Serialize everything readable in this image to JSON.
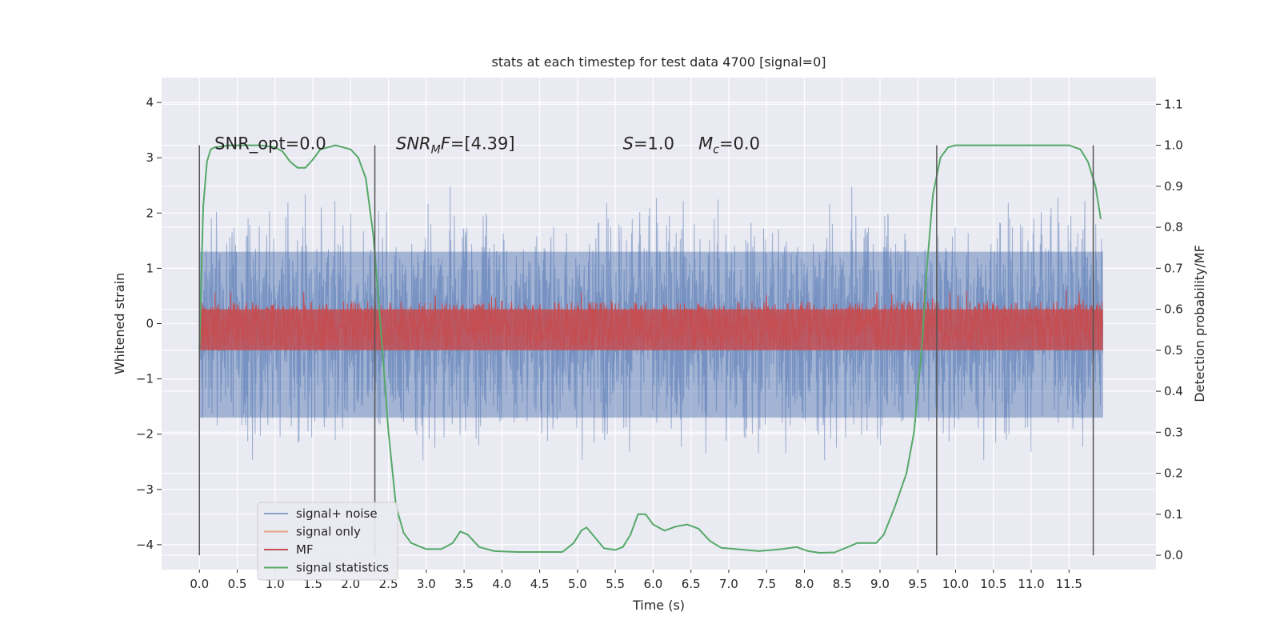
{
  "chart_data": {
    "type": "line",
    "title": "stats at each timestep for test data 4700 [signal=0]",
    "xlabel": "Time (s)",
    "ylabel": "Whitened strain",
    "y2label": "Detection probability/MF",
    "xlim": [
      -0.5,
      12.65
    ],
    "ylim": [
      -4.45,
      4.45
    ],
    "y2lim": [
      -0.035,
      1.165
    ],
    "x_ticks": [
      0.0,
      0.5,
      1.0,
      1.5,
      2.0,
      2.5,
      3.0,
      3.5,
      4.0,
      4.5,
      5.0,
      5.5,
      6.0,
      6.5,
      7.0,
      7.5,
      8.0,
      8.5,
      9.0,
      9.5,
      10.0,
      10.5,
      11.0,
      11.5
    ],
    "x_tick_labels": [
      "0.0",
      "0.5",
      "1.0",
      "1.5",
      "2.0",
      "2.5",
      "3.0",
      "3.5",
      "4.0",
      "4.5",
      "5.0",
      "5.5",
      "6.0",
      "6.5",
      "7.0",
      "7.5",
      "8.0",
      "8.5",
      "9.0",
      "9.5",
      "10.0",
      "10.5",
      "11.0",
      "11.5"
    ],
    "y_ticks": [
      4,
      3,
      2,
      1,
      0,
      -1,
      -2,
      -3,
      -4
    ],
    "y_tick_labels": [
      "4",
      "3",
      "2",
      "1",
      "0",
      "−1",
      "−2",
      "−3",
      "−4"
    ],
    "y2_ticks": [
      1.1,
      1.0,
      0.9,
      0.8,
      0.7,
      0.6,
      0.5,
      0.4,
      0.3,
      0.2,
      0.1,
      0.0
    ],
    "y2_tick_labels": [
      "1.1",
      "1.0",
      "0.9",
      "0.8",
      "0.7",
      "0.6",
      "0.5",
      "0.4",
      "0.3",
      "0.2",
      "0.1",
      "0.0"
    ],
    "grid": true,
    "legend_placement": "lower-left",
    "annotations": {
      "snr_opt": "SNR_opt=0.0",
      "snr_mf_name": "SNR",
      "snr_mf_sub": "M",
      "snr_mf_tail": "F",
      "snr_mf_value": "=[4.39]",
      "s_name": "S",
      "s_value": "=1.0",
      "mc_name": "M",
      "mc_sub": "c",
      "mc_value": "=0.0"
    },
    "vertical_markers_x": [
      0.0,
      2.32,
      9.75,
      11.82
    ],
    "vertical_markers_y2_range": [
      0.0,
      1.0
    ],
    "series": [
      {
        "name": "signal+ noise",
        "color": "#4c72b0",
        "style": "noise band",
        "t_range": [
          0.0,
          11.95
        ],
        "typical_abs": 1.3,
        "core_range": [
          -1.9,
          1.9
        ]
      },
      {
        "name": "signal only",
        "color": "#dd8452",
        "style": "line",
        "values": []
      },
      {
        "name": "MF",
        "color": "#c44e52",
        "style": "noise band",
        "t_range": [
          0.0,
          11.95
        ],
        "y2_range": [
          0.5,
          0.6
        ]
      },
      {
        "name": "signal statistics",
        "color": "#55a868",
        "style": "line",
        "x": [
          0.0,
          0.05,
          0.1,
          0.15,
          0.2,
          0.4,
          0.6,
          0.8,
          1.0,
          1.1,
          1.2,
          1.3,
          1.4,
          1.5,
          1.6,
          1.8,
          2.0,
          2.1,
          2.2,
          2.3,
          2.4,
          2.5,
          2.6,
          2.7,
          2.8,
          3.0,
          3.2,
          3.35,
          3.45,
          3.55,
          3.7,
          3.9,
          4.2,
          4.5,
          4.8,
          4.95,
          5.05,
          5.12,
          5.2,
          5.35,
          5.5,
          5.6,
          5.7,
          5.8,
          5.9,
          6.0,
          6.15,
          6.3,
          6.45,
          6.6,
          6.75,
          6.9,
          7.1,
          7.4,
          7.7,
          7.9,
          8.05,
          8.2,
          8.4,
          8.6,
          8.7,
          8.85,
          8.95,
          9.05,
          9.2,
          9.35,
          9.45,
          9.55,
          9.62,
          9.7,
          9.8,
          9.9,
          10.0,
          10.3,
          11.0,
          11.5,
          11.65,
          11.75,
          11.85,
          11.92
        ],
        "y": [
          0.5,
          0.85,
          0.96,
          0.99,
          0.995,
          1.0,
          1.0,
          1.0,
          0.995,
          0.985,
          0.96,
          0.945,
          0.945,
          0.965,
          0.99,
          1.0,
          0.99,
          0.97,
          0.92,
          0.78,
          0.55,
          0.3,
          0.12,
          0.055,
          0.03,
          0.015,
          0.015,
          0.03,
          0.058,
          0.05,
          0.02,
          0.01,
          0.008,
          0.008,
          0.008,
          0.03,
          0.06,
          0.068,
          0.05,
          0.017,
          0.013,
          0.02,
          0.05,
          0.1,
          0.1,
          0.075,
          0.06,
          0.07,
          0.075,
          0.065,
          0.035,
          0.018,
          0.015,
          0.01,
          0.015,
          0.02,
          0.01,
          0.006,
          0.007,
          0.022,
          0.03,
          0.03,
          0.03,
          0.05,
          0.12,
          0.2,
          0.3,
          0.5,
          0.7,
          0.88,
          0.97,
          0.995,
          1.0,
          1.0,
          1.0,
          1.0,
          0.99,
          0.96,
          0.9,
          0.82
        ]
      }
    ]
  }
}
